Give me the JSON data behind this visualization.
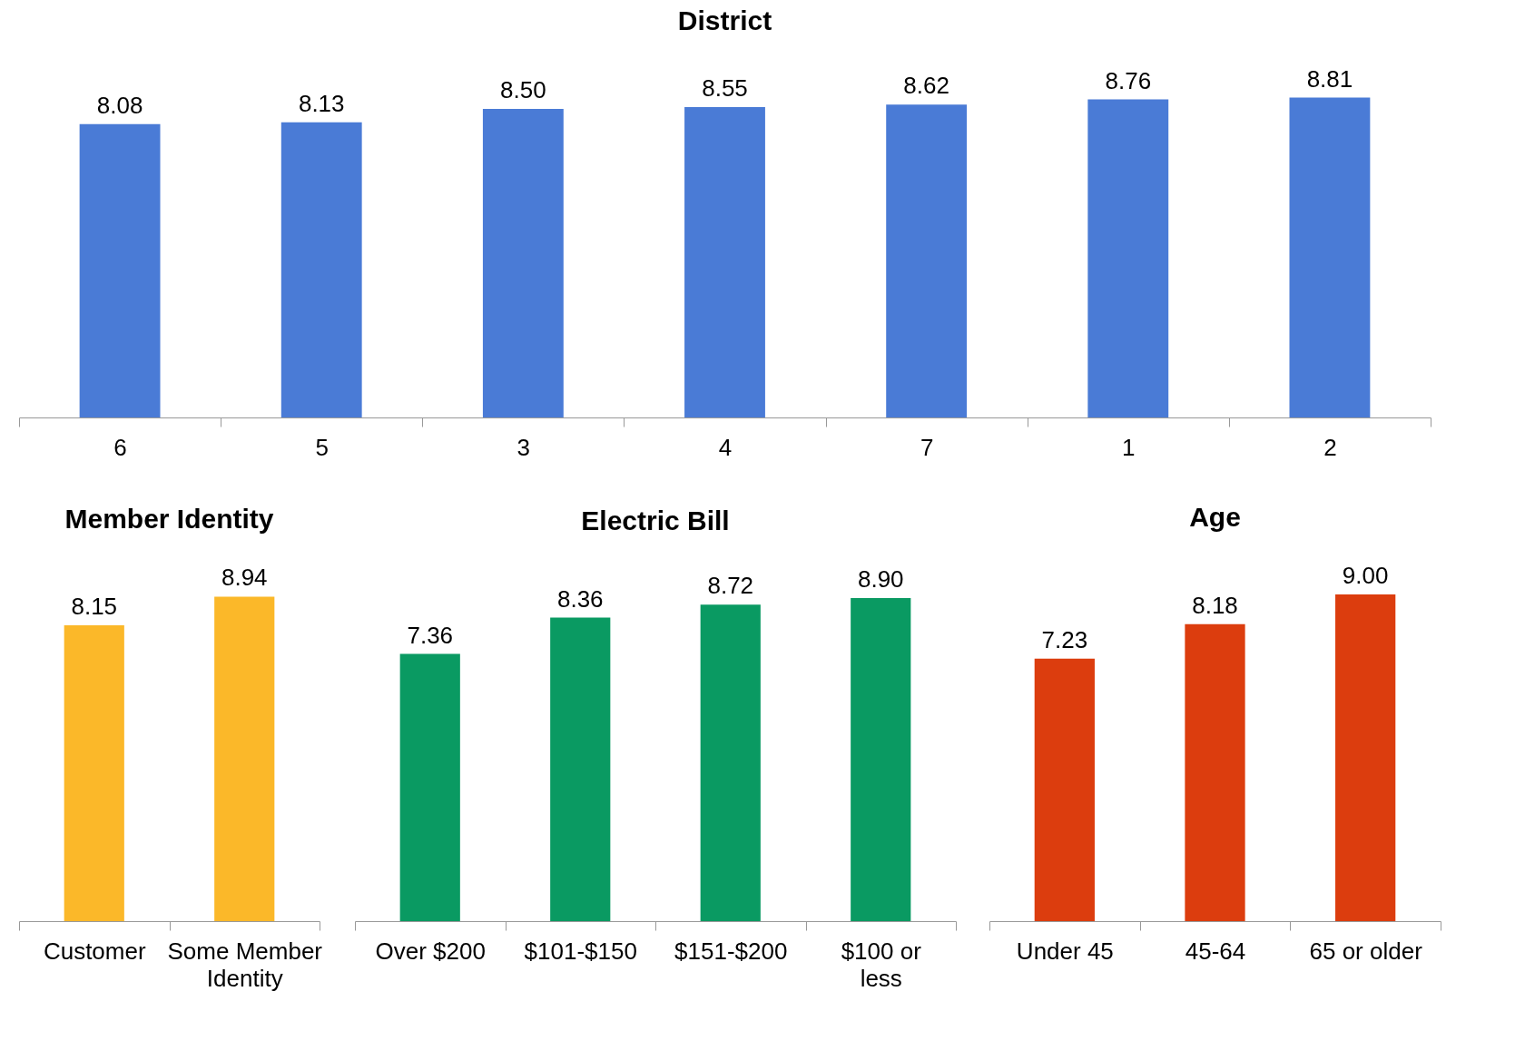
{
  "chart_data": [
    {
      "type": "bar",
      "title": "District",
      "categories": [
        "6",
        "5",
        "3",
        "4",
        "7",
        "1",
        "2"
      ],
      "values": [
        8.08,
        8.13,
        8.5,
        8.55,
        8.62,
        8.76,
        8.81
      ],
      "value_labels": [
        "8.08",
        "8.13",
        "8.50",
        "8.55",
        "8.62",
        "8.76",
        "8.81"
      ],
      "color": "#4a7bd6",
      "tick_labels": "x"
    },
    {
      "type": "bar",
      "title": "Member Identity",
      "categories": [
        "Customer",
        "Some Member Identity"
      ],
      "values": [
        8.15,
        8.94
      ],
      "value_labels": [
        "8.15",
        "8.94"
      ],
      "color": "#fbb829",
      "tick_labels": "x"
    },
    {
      "type": "bar",
      "title": "Electric Bill",
      "categories": [
        "Over $200",
        "$101-$150",
        "$151-$200",
        "$100 or less"
      ],
      "values": [
        7.36,
        8.36,
        8.72,
        8.9
      ],
      "value_labels": [
        "7.36",
        "8.36",
        "8.72",
        "8.90"
      ],
      "color": "#0a9a62",
      "tick_labels": "x"
    },
    {
      "type": "bar",
      "title": "Age",
      "categories": [
        "Under 45",
        "45-64",
        "65 or older"
      ],
      "values": [
        7.23,
        8.18,
        9.0
      ],
      "value_labels": [
        "7.23",
        "8.18",
        "9.00"
      ],
      "color": "#dc3d0e",
      "tick_labels": "x"
    }
  ]
}
